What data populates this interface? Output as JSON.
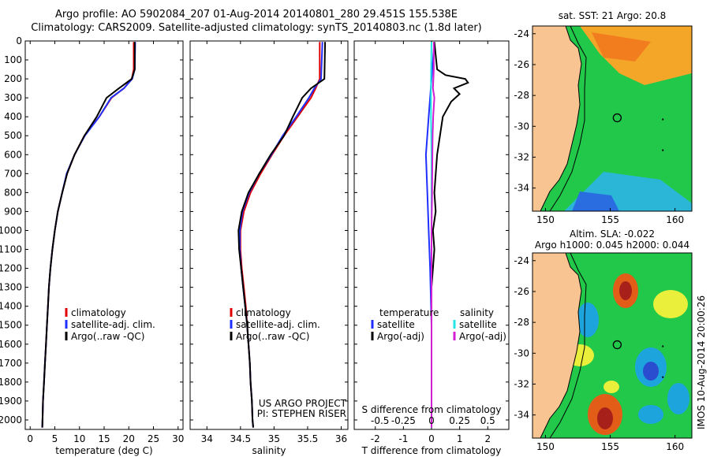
{
  "title_line1": "Argo profile: AO 5902084_207 01-Aug-2014 20140801_280 29.451S 155.538E",
  "title_line2": "Climatology: CARS2009. Satellite-adjusted climatology: synTS_20140803.nc (1.8d later)",
  "watermark": "IMOS 10-Aug-2014 20:00:26",
  "colors": {
    "climatology": "#e00000",
    "satellite": "#1f2fff",
    "argo": "#000000",
    "cyan": "#22e5e5",
    "magenta": "#d11fd1",
    "land": "#f8c592",
    "ocean": "#22c84a"
  },
  "chart_data": [
    {
      "type": "line",
      "xlabel": "temperature (deg C)",
      "xlim": [
        -1,
        31
      ],
      "xticks": [
        0,
        5,
        10,
        15,
        20,
        25,
        30
      ],
      "ylim": [
        2050,
        0
      ],
      "yticks": [
        0,
        100,
        200,
        300,
        400,
        500,
        600,
        700,
        800,
        900,
        1000,
        1100,
        1200,
        1300,
        1400,
        1500,
        1600,
        1700,
        1800,
        1900,
        2000
      ],
      "legend": [
        "climatology",
        "satellite-adj. clim.",
        "Argo(..raw -QC)"
      ],
      "series": [
        {
          "name": "climatology",
          "color_key": "climatology",
          "points": [
            [
              21.0,
              5
            ],
            [
              21.0,
              150
            ],
            [
              20.6,
              200
            ],
            [
              19.0,
              250
            ],
            [
              16.5,
              300
            ],
            [
              14.0,
              400
            ],
            [
              11.0,
              500
            ],
            [
              9.0,
              600
            ],
            [
              7.5,
              700
            ],
            [
              6.5,
              800
            ],
            [
              5.6,
              900
            ],
            [
              5.0,
              1000
            ],
            [
              4.5,
              1100
            ],
            [
              4.1,
              1200
            ],
            [
              3.8,
              1300
            ],
            [
              3.6,
              1400
            ],
            [
              3.4,
              1500
            ],
            [
              3.2,
              1600
            ],
            [
              3.0,
              1700
            ],
            [
              2.8,
              1800
            ],
            [
              2.6,
              1900
            ],
            [
              2.5,
              2000
            ],
            [
              2.45,
              2040
            ]
          ]
        },
        {
          "name": "satellite-adj. clim.",
          "color_key": "satellite",
          "points": [
            [
              21.3,
              5
            ],
            [
              21.2,
              150
            ],
            [
              20.7,
              200
            ],
            [
              19.0,
              250
            ],
            [
              16.4,
              300
            ],
            [
              14.0,
              400
            ],
            [
              11.1,
              500
            ],
            [
              9.0,
              600
            ],
            [
              7.4,
              700
            ],
            [
              6.5,
              800
            ],
            [
              5.6,
              900
            ],
            [
              5.0,
              1000
            ],
            [
              4.5,
              1100
            ],
            [
              4.1,
              1200
            ],
            [
              3.8,
              1300
            ],
            [
              3.6,
              1400
            ],
            [
              3.4,
              1500
            ],
            [
              3.2,
              1600
            ],
            [
              3.0,
              1700
            ],
            [
              2.8,
              1800
            ],
            [
              2.6,
              1900
            ],
            [
              2.5,
              2000
            ],
            [
              2.45,
              2040
            ]
          ]
        },
        {
          "name": "Argo(..raw -QC)",
          "color_key": "argo",
          "points": [
            [
              21.2,
              5
            ],
            [
              21.2,
              150
            ],
            [
              20.6,
              200
            ],
            [
              18.0,
              250
            ],
            [
              15.5,
              300
            ],
            [
              13.5,
              400
            ],
            [
              11.0,
              500
            ],
            [
              9.0,
              600
            ],
            [
              7.5,
              700
            ],
            [
              6.5,
              800
            ],
            [
              5.6,
              900
            ],
            [
              5.0,
              1000
            ],
            [
              4.5,
              1100
            ],
            [
              4.1,
              1200
            ],
            [
              3.8,
              1300
            ],
            [
              3.6,
              1400
            ],
            [
              3.4,
              1500
            ],
            [
              3.2,
              1600
            ],
            [
              3.0,
              1700
            ],
            [
              2.8,
              1800
            ],
            [
              2.6,
              1900
            ],
            [
              2.5,
              2000
            ],
            [
              2.45,
              2040
            ]
          ]
        }
      ]
    },
    {
      "type": "line",
      "xlabel": "salinity",
      "xlim": [
        33.75,
        36.1
      ],
      "xticks": [
        34,
        34.5,
        35,
        35.5,
        36
      ],
      "ylim": [
        2050,
        0
      ],
      "legend": [
        "climatology",
        "satellite-adj. clim.",
        "Argo(..raw -QC)"
      ],
      "annotation": [
        "US ARGO PROJECT",
        "PI: STEPHEN RISER"
      ],
      "series": [
        {
          "name": "climatology",
          "color_key": "climatology",
          "points": [
            [
              35.68,
              5
            ],
            [
              35.68,
              200
            ],
            [
              35.62,
              250
            ],
            [
              35.55,
              300
            ],
            [
              35.35,
              400
            ],
            [
              35.15,
              500
            ],
            [
              34.97,
              600
            ],
            [
              34.8,
              700
            ],
            [
              34.65,
              800
            ],
            [
              34.55,
              900
            ],
            [
              34.5,
              1000
            ],
            [
              34.5,
              1100
            ],
            [
              34.52,
              1200
            ],
            [
              34.55,
              1300
            ],
            [
              34.58,
              1400
            ],
            [
              34.6,
              1500
            ],
            [
              34.62,
              1600
            ],
            [
              34.64,
              1700
            ],
            [
              34.65,
              1800
            ],
            [
              34.67,
              1900
            ],
            [
              34.68,
              2000
            ],
            [
              34.69,
              2040
            ]
          ]
        },
        {
          "name": "satellite-adj. clim.",
          "color_key": "satellite",
          "points": [
            [
              35.72,
              5
            ],
            [
              35.7,
              200
            ],
            [
              35.6,
              250
            ],
            [
              35.52,
              300
            ],
            [
              35.33,
              400
            ],
            [
              35.13,
              500
            ],
            [
              34.96,
              600
            ],
            [
              34.78,
              700
            ],
            [
              34.63,
              800
            ],
            [
              34.53,
              900
            ],
            [
              34.49,
              1000
            ],
            [
              34.49,
              1100
            ],
            [
              34.51,
              1200
            ],
            [
              34.54,
              1300
            ],
            [
              34.57,
              1400
            ],
            [
              34.6,
              1500
            ],
            [
              34.62,
              1600
            ],
            [
              34.64,
              1700
            ],
            [
              34.65,
              1800
            ],
            [
              34.67,
              1900
            ],
            [
              34.68,
              2000
            ],
            [
              34.69,
              2040
            ]
          ]
        },
        {
          "name": "Argo(..raw -QC)",
          "color_key": "argo",
          "points": [
            [
              35.76,
              5
            ],
            [
              35.75,
              200
            ],
            [
              35.55,
              250
            ],
            [
              35.42,
              300
            ],
            [
              35.28,
              400
            ],
            [
              35.15,
              500
            ],
            [
              34.95,
              600
            ],
            [
              34.78,
              700
            ],
            [
              34.62,
              800
            ],
            [
              34.52,
              900
            ],
            [
              34.47,
              1000
            ],
            [
              34.48,
              1100
            ],
            [
              34.51,
              1200
            ],
            [
              34.54,
              1300
            ],
            [
              34.57,
              1400
            ],
            [
              34.6,
              1500
            ],
            [
              34.62,
              1600
            ],
            [
              34.64,
              1700
            ],
            [
              34.65,
              1800
            ],
            [
              34.67,
              1900
            ],
            [
              34.68,
              2000
            ],
            [
              34.69,
              2040
            ]
          ]
        }
      ]
    },
    {
      "type": "line",
      "xlabel": "T difference from climatology",
      "xlabel_top": "S difference from climatology",
      "xlim": [
        -2.75,
        2.75
      ],
      "xticks": [
        -2,
        -1,
        0,
        1,
        2
      ],
      "sticks": [
        "-0.5",
        "-0.25",
        "0",
        "0.25",
        "0.5"
      ],
      "ylim": [
        2050,
        0
      ],
      "legend_left": [
        "temperature",
        "satellite",
        "Argo(-adj)"
      ],
      "legend_right": [
        "salinity",
        "satellite",
        "Argo(-adj)"
      ],
      "series": [
        {
          "name": "temperature satellite",
          "color_key": "satellite",
          "points": [
            [
              0.1,
              5
            ],
            [
              0.0,
              200
            ],
            [
              -0.1,
              400
            ],
            [
              -0.2,
              600
            ],
            [
              -0.15,
              800
            ],
            [
              -0.1,
              1000
            ],
            [
              -0.05,
              1200
            ],
            [
              0.0,
              1500
            ],
            [
              0.0,
              1800
            ],
            [
              0.0,
              2040
            ]
          ]
        },
        {
          "name": "temperature Argo(-adj)",
          "color_key": "argo",
          "points": [
            [
              0.1,
              5
            ],
            [
              0.2,
              150
            ],
            [
              0.5,
              180
            ],
            [
              1.2,
              200
            ],
            [
              1.3,
              220
            ],
            [
              0.8,
              250
            ],
            [
              1.0,
              280
            ],
            [
              0.7,
              320
            ],
            [
              0.4,
              400
            ],
            [
              0.3,
              500
            ],
            [
              0.2,
              600
            ],
            [
              0.1,
              800
            ],
            [
              0.15,
              900
            ],
            [
              0.05,
              1000
            ],
            [
              0.1,
              1100
            ],
            [
              0.0,
              1300
            ],
            [
              0.0,
              1600
            ],
            [
              0.0,
              2040
            ]
          ]
        },
        {
          "name": "salinity satellite",
          "color_key": "cyan",
          "points": [
            [
              0.0,
              5
            ],
            [
              -0.02,
              200
            ],
            [
              -0.02,
              400
            ],
            [
              0.0,
              600
            ],
            [
              0.0,
              1000
            ],
            [
              0.0,
              2040
            ]
          ]
        },
        {
          "name": "salinity Argo(-adj)",
          "color_key": "magenta",
          "points": [
            [
              0.08,
              5
            ],
            [
              0.08,
              150
            ],
            [
              0.05,
              250
            ],
            [
              0.1,
              300
            ],
            [
              0.06,
              400
            ],
            [
              0.04,
              500
            ],
            [
              0.03,
              600
            ],
            [
              0.02,
              800
            ],
            [
              0.0,
              1000
            ],
            [
              0.0,
              2040
            ]
          ]
        }
      ]
    }
  ],
  "map_top": {
    "title": "sat. SST: 21 Argo: 20.8",
    "lon_ticks": [
      "150",
      "155",
      "160"
    ],
    "lat_ticks": [
      "-24",
      "-26",
      "-28",
      "-30",
      "-32",
      "-34"
    ]
  },
  "map_bottom": {
    "title1": "Altim. SLA: -0.022",
    "title2": "Argo h1000: 0.045 h2000: 0.044",
    "lon_ticks": [
      "150",
      "155",
      "160"
    ],
    "lat_ticks": [
      "-24",
      "-26",
      "-28",
      "-30",
      "-32",
      "-34"
    ]
  }
}
